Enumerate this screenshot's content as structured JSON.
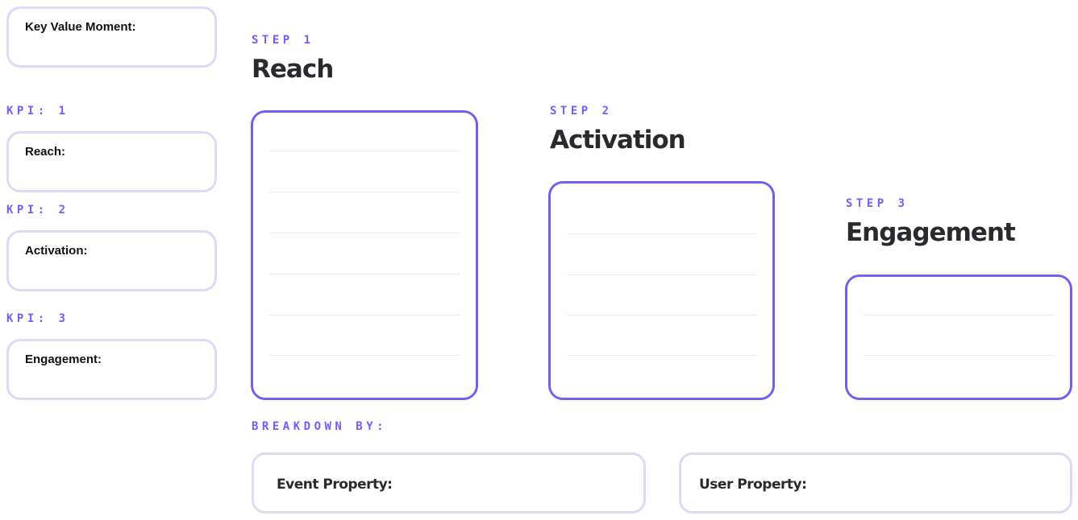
{
  "kpi_panel": {
    "key_value_moment": "Key Value Moment:",
    "kpis": [
      {
        "label": "KPI: 1",
        "box": "Reach:"
      },
      {
        "label": "KPI: 2",
        "box": "Activation:"
      },
      {
        "label": "KPI: 3",
        "box": "Engagement:"
      }
    ]
  },
  "steps": [
    {
      "label": "STEP 1",
      "title": "Reach"
    },
    {
      "label": "STEP 2",
      "title": "Activation"
    },
    {
      "label": "STEP 3",
      "title": "Engagement"
    }
  ],
  "breakdown": {
    "label": "BREAKDOWN BY:",
    "event_property": "Event Property:",
    "user_property": "User Property:"
  },
  "colors": {
    "accent": "#7b5cf0",
    "box_border": "#dddaf8",
    "text": "#2a2a2e"
  }
}
